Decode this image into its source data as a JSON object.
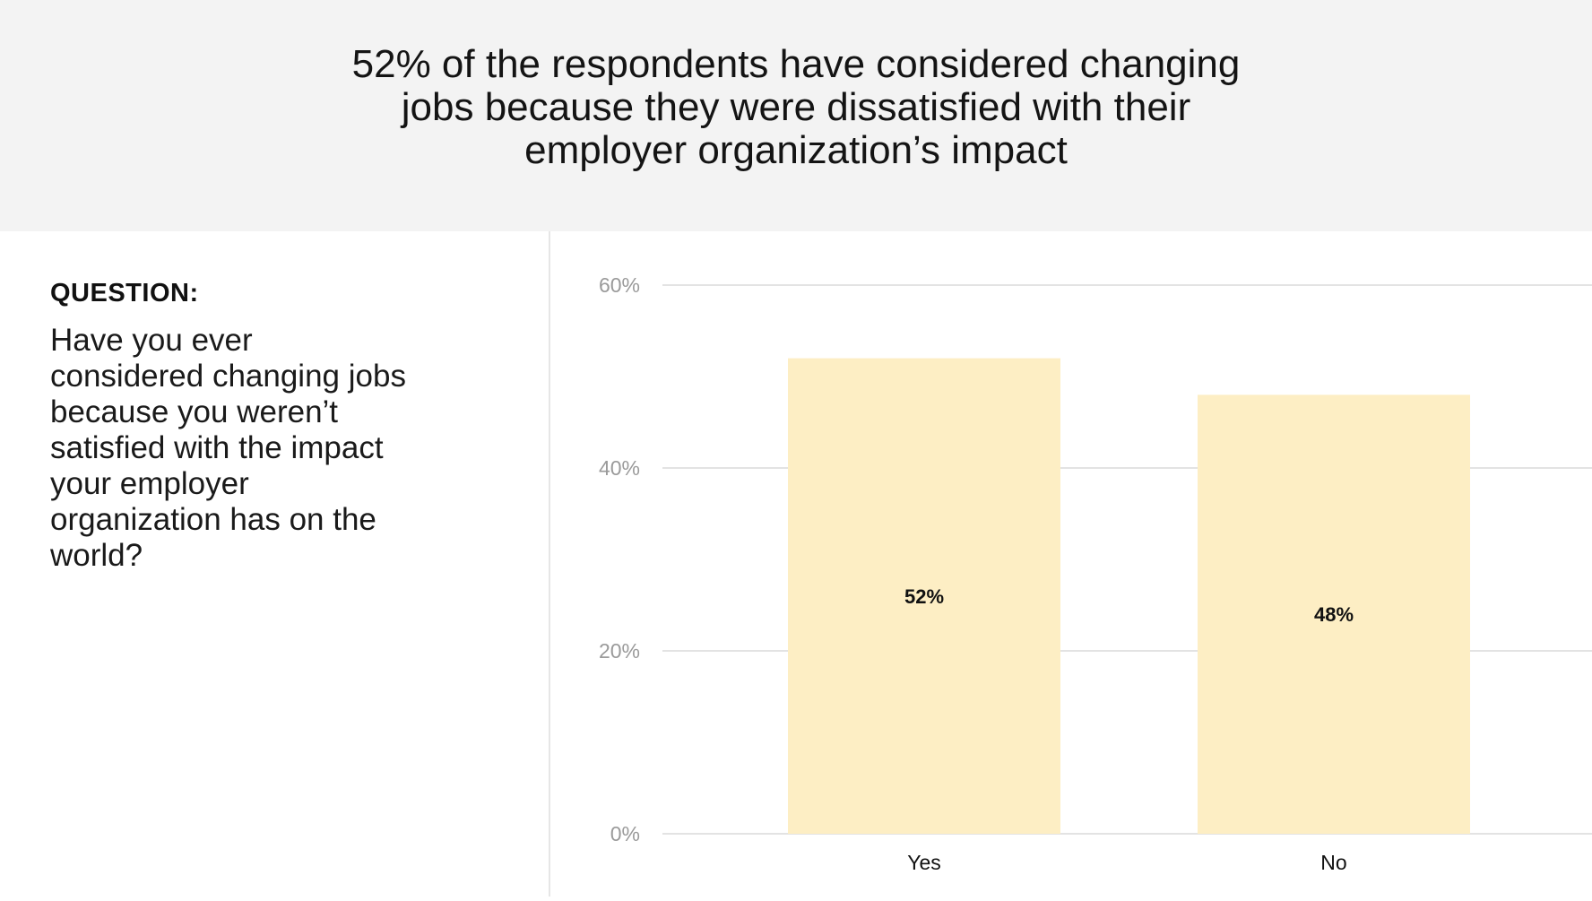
{
  "header": {
    "headline": "52% of the respondents have considered changing\njobs because they were dissatisfied with their\nemployer organization’s impact"
  },
  "question": {
    "label": "QUESTION:",
    "text": "Have you ever considered changing jobs because you weren’t satisfied with the impact your employer organization has on the world?"
  },
  "colors": {
    "bar": "#fdeec4",
    "grid": "#e3e3e3",
    "tick": "#9a9a9a",
    "header_bg": "#f3f3f3"
  },
  "chart_data": {
    "type": "bar",
    "categories": [
      "Yes",
      "No"
    ],
    "values": [
      52,
      48
    ],
    "data_labels": [
      "52%",
      "48%"
    ],
    "yticks": [
      "0%",
      "20%",
      "40%",
      "60%"
    ],
    "ytick_values": [
      0,
      20,
      40,
      60
    ],
    "ylim": [
      0,
      60
    ],
    "grid": true,
    "title": "",
    "xlabel": "",
    "ylabel": ""
  }
}
